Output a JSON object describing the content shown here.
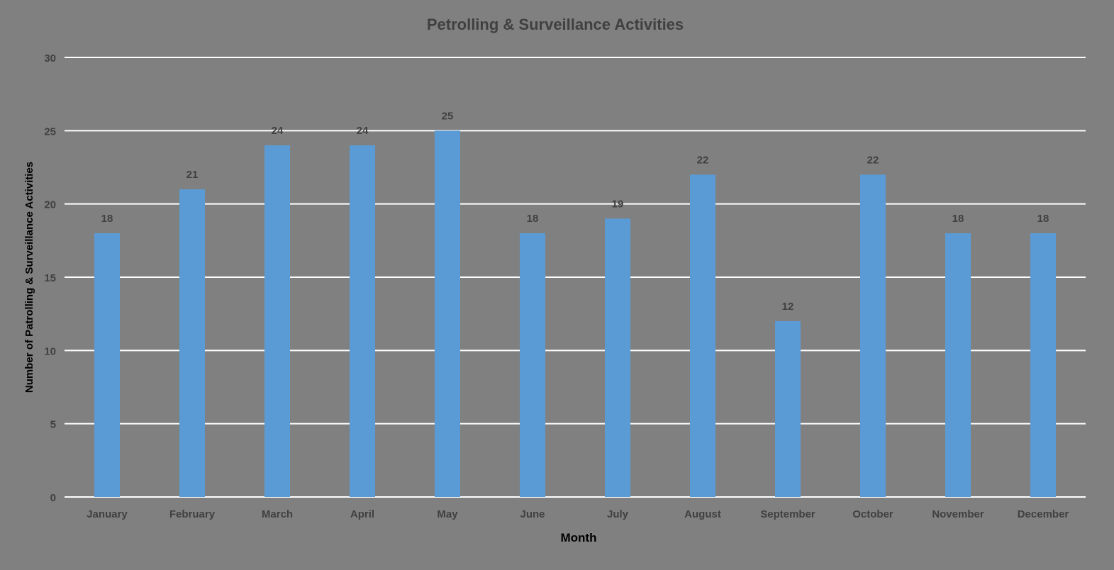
{
  "chart_data": {
    "type": "bar",
    "title": "Petrolling & Surveillance Activities",
    "xlabel": "Month",
    "ylabel": "Number of Patrolling & Surveillance Activities",
    "categories": [
      "January",
      "February",
      "March",
      "April",
      "May",
      "June",
      "July",
      "August",
      "September",
      "October",
      "November",
      "December"
    ],
    "series": [
      {
        "values": [
          18,
          21,
          24,
          24,
          25,
          18,
          19,
          22,
          12,
          22,
          18,
          18
        ]
      }
    ],
    "ylim": [
      0,
      30
    ],
    "yticks": [
      0,
      5,
      10,
      15,
      20,
      25,
      30
    ],
    "data_labels": [
      "18",
      "21",
      "24",
      "24",
      "25",
      "18",
      "19",
      "22",
      "12",
      "22",
      "18",
      "18"
    ],
    "grid": true,
    "legend": "none",
    "colors": {
      "background": "#808080",
      "bar": "#5B9BD5",
      "gridline": "#ffffff",
      "title_text": "#404040",
      "tick_text": "#404040",
      "axis_title_text": "#000000",
      "data_label_text": "#404040"
    }
  }
}
